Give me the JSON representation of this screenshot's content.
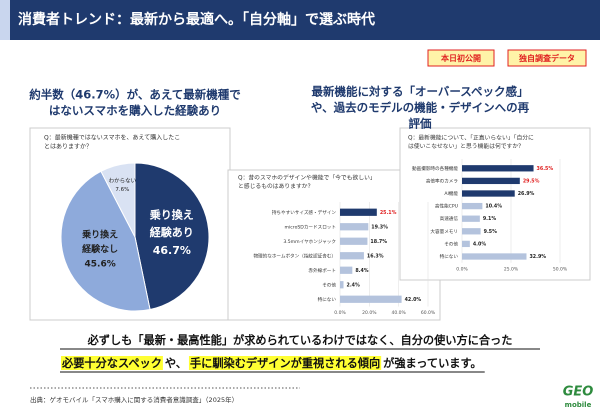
{
  "header": {
    "title": "消費者トレンド：最新から最適へ。「自分軸」で選ぶ時代"
  },
  "badges": [
    "本日初公開",
    "独自調査データ"
  ],
  "left_heading": [
    "約半数（46.7%）が、あえて最新機種で",
    "はないスマホを購入した経験あり"
  ],
  "right_heading": [
    "最新機能に対する「オーバースペック感」",
    "や、過去のモデルの機能・デザインへの再",
    "評価"
  ],
  "pie_chart": {
    "type": "pie",
    "question": [
      "Q：最新機種ではないスマホを、あえて購入したこ",
      "とはありますか？"
    ],
    "slices": [
      {
        "label": [
          "乗り換え",
          "経験あり"
        ],
        "value": 46.7,
        "value_label": "46.7%",
        "color": "#1f3a6e"
      },
      {
        "label": [
          "乗り換え",
          "経験なし"
        ],
        "value": 45.6,
        "value_label": "45.6%",
        "color": "#8eaadb"
      },
      {
        "label": [
          "わからない"
        ],
        "value": 7.6,
        "value_label": "7.6%",
        "color": "#d9e2f3"
      }
    ]
  },
  "bar_charts": [
    {
      "type": "bar",
      "question": [
        "Q：昔のスマホのデザインや機能で「今でも欲しい」",
        "と感じるものはありますか？"
      ],
      "categories": [
        "持ちやすいサイズ感・デザイン",
        "microSDカードスロット",
        "3.5mmイヤホンジャック",
        "物理的なホームボタン（指紋認証含む）",
        "赤外線ポート",
        "その他",
        "特にない"
      ],
      "values": [
        25.1,
        19.3,
        18.7,
        16.3,
        8.4,
        2.4,
        42.0
      ],
      "value_labels": [
        "25.1%",
        "19.3%",
        "18.7%",
        "16.3%",
        "8.4%",
        "2.4%",
        "42.0%"
      ],
      "colors": [
        "#1f3a6e",
        "#b4c3dd",
        "#b4c3dd",
        "#b4c3dd",
        "#b4c3dd",
        "#b4c3dd",
        "#b4c3dd"
      ],
      "label_colors": [
        "#e02020",
        "#222222",
        "#222222",
        "#222222",
        "#222222",
        "#222222",
        "#222222"
      ],
      "xlim": [
        0,
        60
      ],
      "xticks": [
        {
          "value": 0,
          "label": "0.0%"
        },
        {
          "value": 20,
          "label": "20.0%"
        },
        {
          "value": 40,
          "label": "40.0%"
        },
        {
          "value": 60,
          "label": "60.0%"
        }
      ]
    },
    {
      "type": "bar",
      "question": [
        "Q：最新機能について、「正直いらない」「自分に",
        "は使いこなせない」と思う機能は何ですか？"
      ],
      "categories": [
        "動画撮影時の各種機能",
        "高倍率のカメラ",
        "AI機能",
        "高性能CPU",
        "高速通信",
        "大容量メモリ",
        "その他",
        "特にない"
      ],
      "values": [
        36.5,
        29.5,
        26.9,
        10.4,
        9.1,
        9.5,
        4.0,
        32.9
      ],
      "value_labels": [
        "36.5%",
        "29.5%",
        "26.9%",
        "10.4%",
        "9.1%",
        "9.5%",
        "4.0%",
        "32.9%"
      ],
      "colors": [
        "#1f3a6e",
        "#1f3a6e",
        "#1f3a6e",
        "#b4c3dd",
        "#b4c3dd",
        "#b4c3dd",
        "#b4c3dd",
        "#b4c3dd"
      ],
      "label_colors": [
        "#e02020",
        "#e02020",
        "#222222",
        "#222222",
        "#222222",
        "#222222",
        "#222222",
        "#222222"
      ],
      "xlim": [
        0,
        50
      ],
      "xticks": [
        {
          "value": 0,
          "label": "0.0%"
        },
        {
          "value": 25,
          "label": "25.0%"
        },
        {
          "value": 50,
          "label": "50.0%"
        }
      ]
    }
  ],
  "conclusion": {
    "line1": "必ずしも「最新・最高性能」が求められているわけではなく、自分の使い方に合った",
    "line2": [
      "必要十分なスペック",
      "や、",
      "手に馴染むデザインが重視される傾向",
      "が強まっています。"
    ]
  },
  "source": "出典：ゲオモバイル「スマホ購入に関する消費者意識調査」（2025年）",
  "logo": {
    "mark": "GEO",
    "text": "mobile"
  }
}
